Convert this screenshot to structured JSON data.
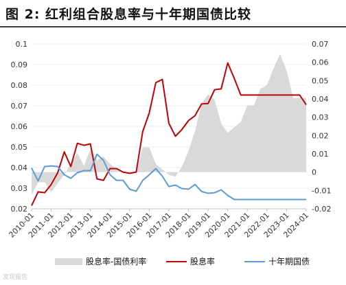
{
  "title": "图 2:  红利组合股息率与十年期国债比较",
  "chart_data": {
    "type": "line",
    "x": [
      "2010-01",
      "2010-05",
      "2010-09",
      "2011-01",
      "2011-05",
      "2011-09",
      "2012-01",
      "2012-05",
      "2012-09",
      "2013-01",
      "2013-05",
      "2013-09",
      "2014-01",
      "2014-05",
      "2014-09",
      "2015-01",
      "2015-05",
      "2015-09",
      "2016-01",
      "2016-05",
      "2016-09",
      "2017-01",
      "2017-05",
      "2017-09",
      "2018-01",
      "2018-05",
      "2018-09",
      "2019-01",
      "2019-05",
      "2019-09",
      "2020-01",
      "2020-05",
      "2020-09",
      "2021-01",
      "2021-05",
      "2021-09",
      "2022-01",
      "2022-05",
      "2022-09",
      "2023-01",
      "2023-05",
      "2023-09",
      "2024-01"
    ],
    "xticks": [
      "2010-01",
      "2011-01",
      "2012-01",
      "2013-01",
      "2014-01",
      "2015-01",
      "2016-01",
      "2017-01",
      "2018-01",
      "2019-01",
      "2020-01",
      "2021-01",
      "2022-01",
      "2023-01",
      "2024-01"
    ],
    "series": [
      {
        "name": "股息率-国债利率",
        "axis": "right",
        "kind": "area",
        "color": "#d9d9d9",
        "values": [
          -0.0125,
          -0.0055,
          -0.0055,
          -0.011,
          -0.006,
          -0.0015,
          0.0045,
          0.0105,
          0.0035,
          0.0125,
          0.0065,
          0.0085,
          0.0045,
          0.002,
          -0.0005,
          0.0005,
          -0.0005,
          0.0135,
          0.0135,
          0.0045,
          0.0015,
          -0.0015,
          -0.0025,
          0.003,
          0.0115,
          0.0225,
          0.0375,
          0.0425,
          0.0395,
          0.0265,
          0.0215,
          0.0245,
          0.0275,
          0.0365,
          0.0365,
          0.0455,
          0.0475,
          0.0565,
          0.0645,
          0.0555,
          0.0405,
          0.0405,
          0.0405
        ]
      },
      {
        "name": "股息率",
        "axis": "left",
        "kind": "line",
        "color": "#c00000",
        "values": [
          0.0215,
          0.0282,
          0.0278,
          0.0318,
          0.0375,
          0.0476,
          0.0405,
          0.0518,
          0.0508,
          0.0515,
          0.0345,
          0.0338,
          0.0395,
          0.0395,
          0.0378,
          0.0372,
          0.0378,
          0.0575,
          0.0665,
          0.0812,
          0.0828,
          0.0615,
          0.0552,
          0.0585,
          0.0628,
          0.0652,
          0.0709,
          0.0711,
          0.0778,
          0.0782,
          0.0908,
          0.0833,
          0.0752,
          0.0752,
          0.0752,
          0.0752,
          0.0752,
          0.0752,
          0.0752,
          0.0752,
          0.0752,
          0.0752,
          0.0705
        ]
      },
      {
        "name": "十年期国债",
        "axis": "left",
        "kind": "line",
        "color": "#5b9bd5",
        "values": [
          0.0398,
          0.0335,
          0.0405,
          0.0408,
          0.0405,
          0.0365,
          0.0348,
          0.0375,
          0.0385,
          0.0385,
          0.0465,
          0.0435,
          0.0365,
          0.0338,
          0.0338,
          0.0295,
          0.0285,
          0.0338,
          0.0365,
          0.0395,
          0.0358,
          0.0308,
          0.0315,
          0.0298,
          0.0295,
          0.0318,
          0.0284,
          0.0275,
          0.0278,
          0.0292,
          0.0265,
          0.0245,
          0.0245,
          0.0245,
          0.0245,
          0.0245,
          0.0245,
          0.0245,
          0.0245,
          0.0245,
          0.0245,
          0.0245,
          0.0245
        ]
      }
    ],
    "ylim_left": [
      0.02,
      0.1
    ],
    "yticks_left": [
      "0.1",
      "0.09",
      "0.08",
      "0.07",
      "0.06",
      "0.05",
      "0.04",
      "0.03",
      "0.02"
    ],
    "ylim_right": [
      -0.02,
      0.07
    ],
    "yticks_right": [
      "0.07",
      "0.06",
      "0.05",
      "0.04",
      "0.03",
      "0.02",
      "0.01",
      "0",
      "-0.01",
      "-0.02"
    ],
    "legend": [
      "股息率-国债利率",
      "股息率",
      "十年期国债"
    ],
    "legend_position": "bottom"
  },
  "watermark": "发现报告"
}
